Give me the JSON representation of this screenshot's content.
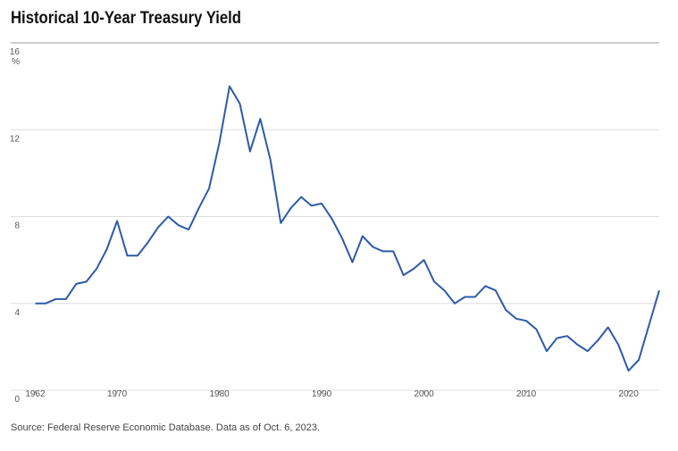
{
  "chart_data": {
    "type": "line",
    "title": "Historical 10-Year Treasury Yield",
    "y_unit": "%",
    "source": "Source: Federal Reserve Economic Database. Data as of Oct. 6, 2023.",
    "x": [
      1962,
      1963,
      1964,
      1965,
      1966,
      1967,
      1968,
      1969,
      1970,
      1971,
      1972,
      1973,
      1974,
      1975,
      1976,
      1977,
      1978,
      1979,
      1980,
      1981,
      1982,
      1983,
      1984,
      1985,
      1986,
      1987,
      1988,
      1989,
      1990,
      1991,
      1992,
      1993,
      1994,
      1995,
      1996,
      1997,
      1998,
      1999,
      2000,
      2001,
      2002,
      2003,
      2004,
      2005,
      2006,
      2007,
      2008,
      2009,
      2010,
      2011,
      2012,
      2013,
      2014,
      2015,
      2016,
      2017,
      2018,
      2019,
      2020,
      2021,
      2022,
      2023
    ],
    "series": [
      {
        "color": "#2c5ba8",
        "values": [
          4.0,
          4.0,
          4.2,
          4.2,
          4.9,
          5.0,
          5.6,
          6.5,
          7.8,
          6.2,
          6.2,
          6.8,
          7.5,
          8.0,
          7.6,
          7.4,
          8.4,
          9.3,
          11.4,
          14.0,
          13.2,
          11.0,
          12.5,
          10.6,
          7.7,
          8.4,
          8.9,
          8.5,
          8.6,
          7.9,
          7.0,
          5.9,
          7.1,
          6.6,
          6.4,
          6.4,
          5.3,
          5.6,
          6.0,
          5.0,
          4.6,
          4.0,
          4.3,
          4.3,
          4.8,
          4.6,
          3.7,
          3.3,
          3.2,
          2.8,
          1.8,
          2.4,
          2.5,
          2.1,
          1.8,
          2.3,
          2.9,
          2.1,
          0.9,
          1.4,
          3.0,
          4.6
        ]
      }
    ],
    "xlim": [
      1961,
      2023
    ],
    "xticks": [
      1962,
      1970,
      1980,
      1990,
      2000,
      2010,
      2020
    ],
    "ylim": [
      0,
      16
    ],
    "yticks": [
      0,
      4,
      8,
      12,
      16
    ],
    "grid": true
  }
}
